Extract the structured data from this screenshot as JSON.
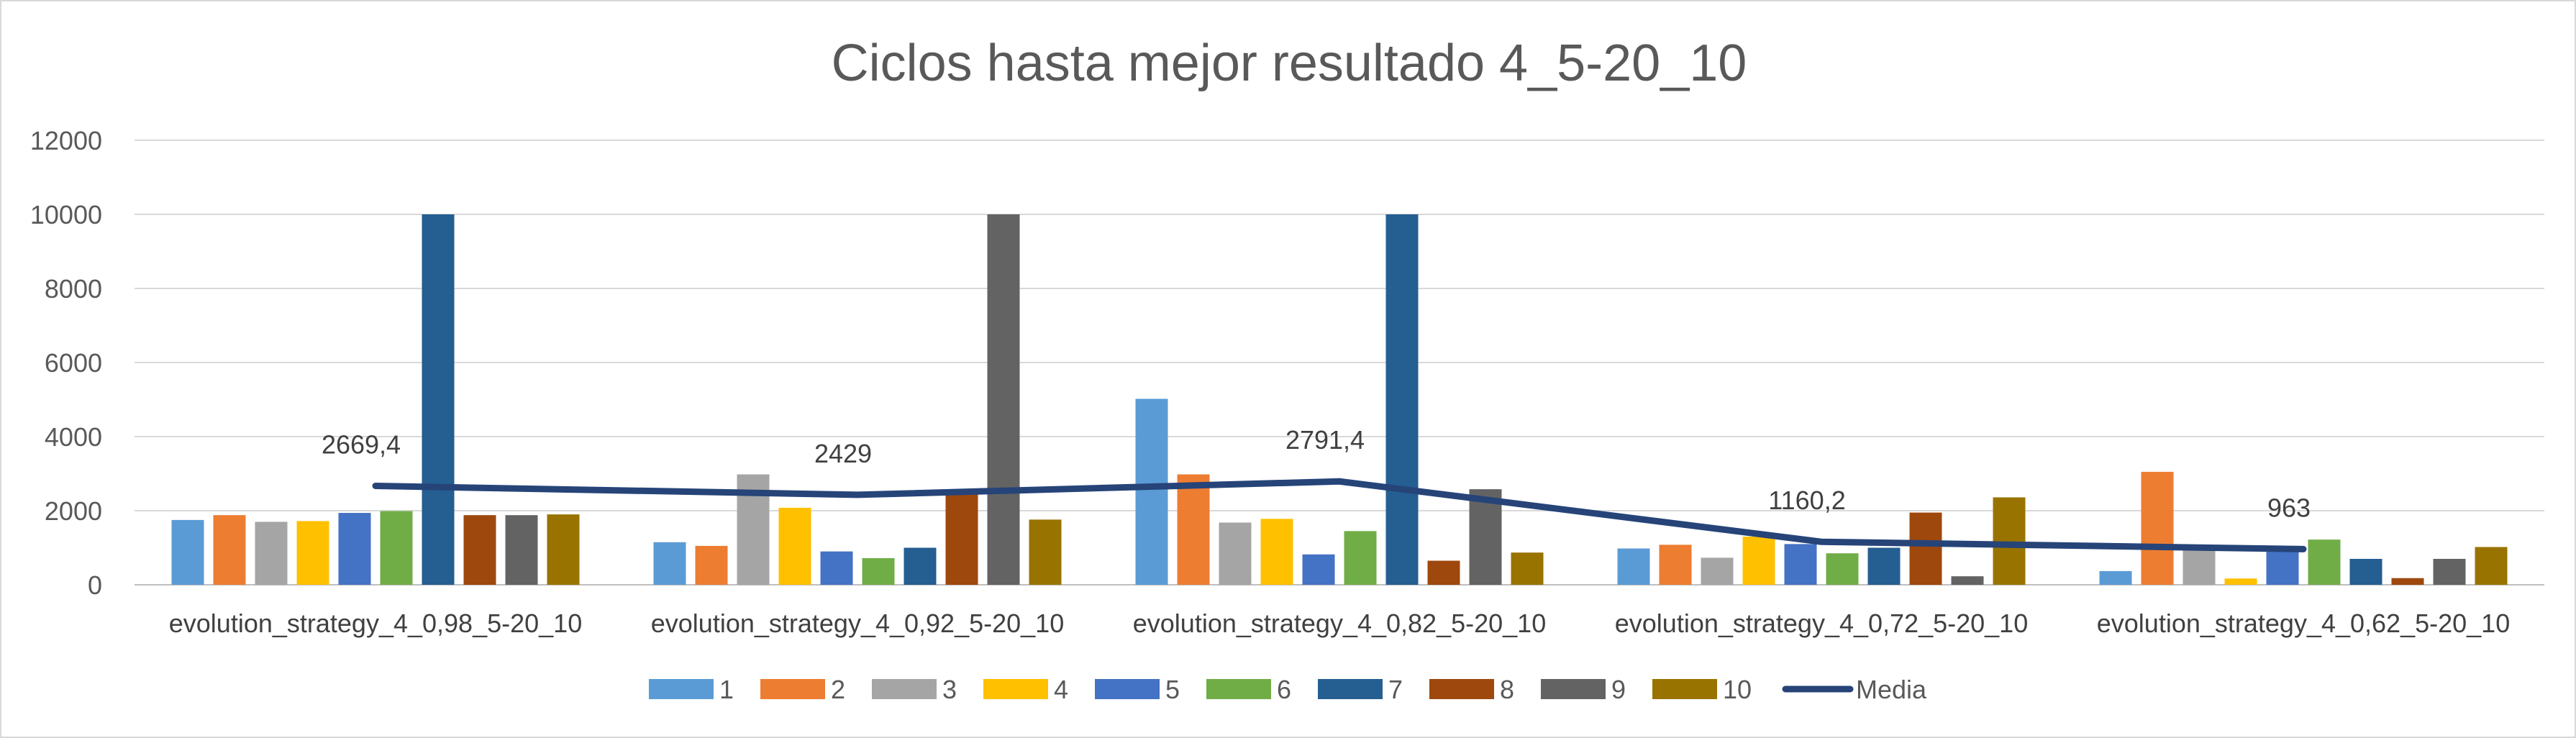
{
  "chart_data": {
    "type": "bar",
    "title": "Ciclos  hasta mejor resultado 4_5-20_10",
    "categories": [
      "evolution_strategy_4_0,98_5-20_10",
      "evolution_strategy_4_0,92_5-20_10",
      "evolution_strategy_4_0,82_5-20_10",
      "evolution_strategy_4_0,72_5-20_10",
      "evolution_strategy_4_0,62_5-20_10"
    ],
    "ylim": [
      0,
      12000
    ],
    "yticks": [
      0,
      2000,
      4000,
      6000,
      8000,
      10000,
      12000
    ],
    "grid": true,
    "legend_position": "bottom",
    "series": [
      {
        "name": "1",
        "color": "#5B9BD5",
        "values": [
          1750,
          1150,
          5020,
          980,
          370
        ]
      },
      {
        "name": "2",
        "color": "#ED7D31",
        "values": [
          1880,
          1050,
          2980,
          1080,
          3050
        ]
      },
      {
        "name": "3",
        "color": "#A5A5A5",
        "values": [
          1700,
          2980,
          1680,
          730,
          940
        ]
      },
      {
        "name": "4",
        "color": "#FFC000",
        "values": [
          1720,
          2080,
          1780,
          1300,
          170
        ]
      },
      {
        "name": "5",
        "color": "#4472C4",
        "values": [
          1940,
          900,
          820,
          1100,
          940
        ]
      },
      {
        "name": "6",
        "color": "#70AD47",
        "values": [
          1990,
          720,
          1450,
          850,
          1220
        ]
      },
      {
        "name": "7",
        "color": "#255E91",
        "values": [
          10000,
          1000,
          10000,
          1000,
          700
        ]
      },
      {
        "name": "8",
        "color": "#9E480E",
        "values": [
          1880,
          2480,
          650,
          1950,
          180
        ]
      },
      {
        "name": "9",
        "color": "#636363",
        "values": [
          1880,
          10000,
          2580,
          230,
          700
        ]
      },
      {
        "name": "10",
        "color": "#997300",
        "values": [
          1900,
          1760,
          870,
          2360,
          1020
        ]
      }
    ],
    "media": {
      "name": "Media",
      "color": "#264478",
      "values": [
        2669.4,
        2429,
        2791.4,
        1160.2,
        963
      ],
      "labels": [
        "2669,4",
        "2429",
        "2791,4",
        "1160,2",
        "963"
      ]
    }
  }
}
